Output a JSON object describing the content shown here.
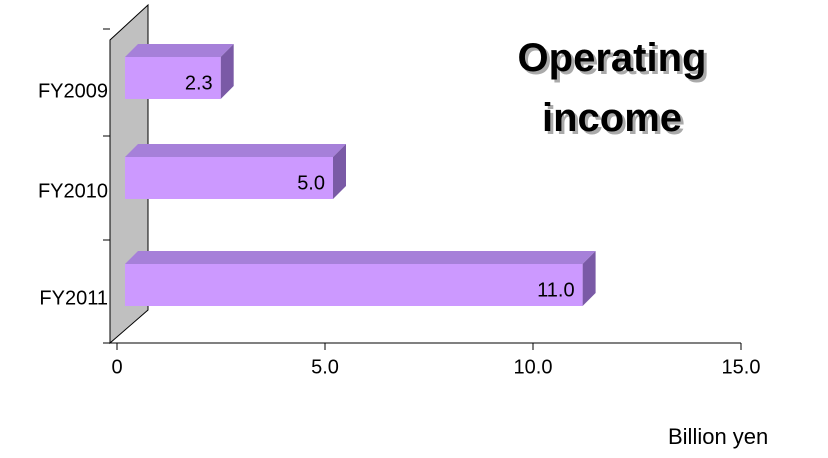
{
  "chart_data": {
    "type": "bar",
    "orientation": "horizontal",
    "title": "Operating income",
    "x_unit": "Billion yen",
    "categories": [
      "FY2009",
      "FY2010",
      "FY2011"
    ],
    "values": [
      2.3,
      5.0,
      11.0
    ],
    "value_labels": [
      "2.3",
      "5.0",
      "11.0"
    ],
    "color": "#cc99ff",
    "xlim": [
      0,
      15.0
    ],
    "xticks": [
      0,
      {
        "value": 5.0,
        "label": "5.0"
      },
      {
        "value": 10.0,
        "label": "10.0"
      },
      {
        "value": 15.0,
        "label": "15.0"
      }
    ]
  }
}
